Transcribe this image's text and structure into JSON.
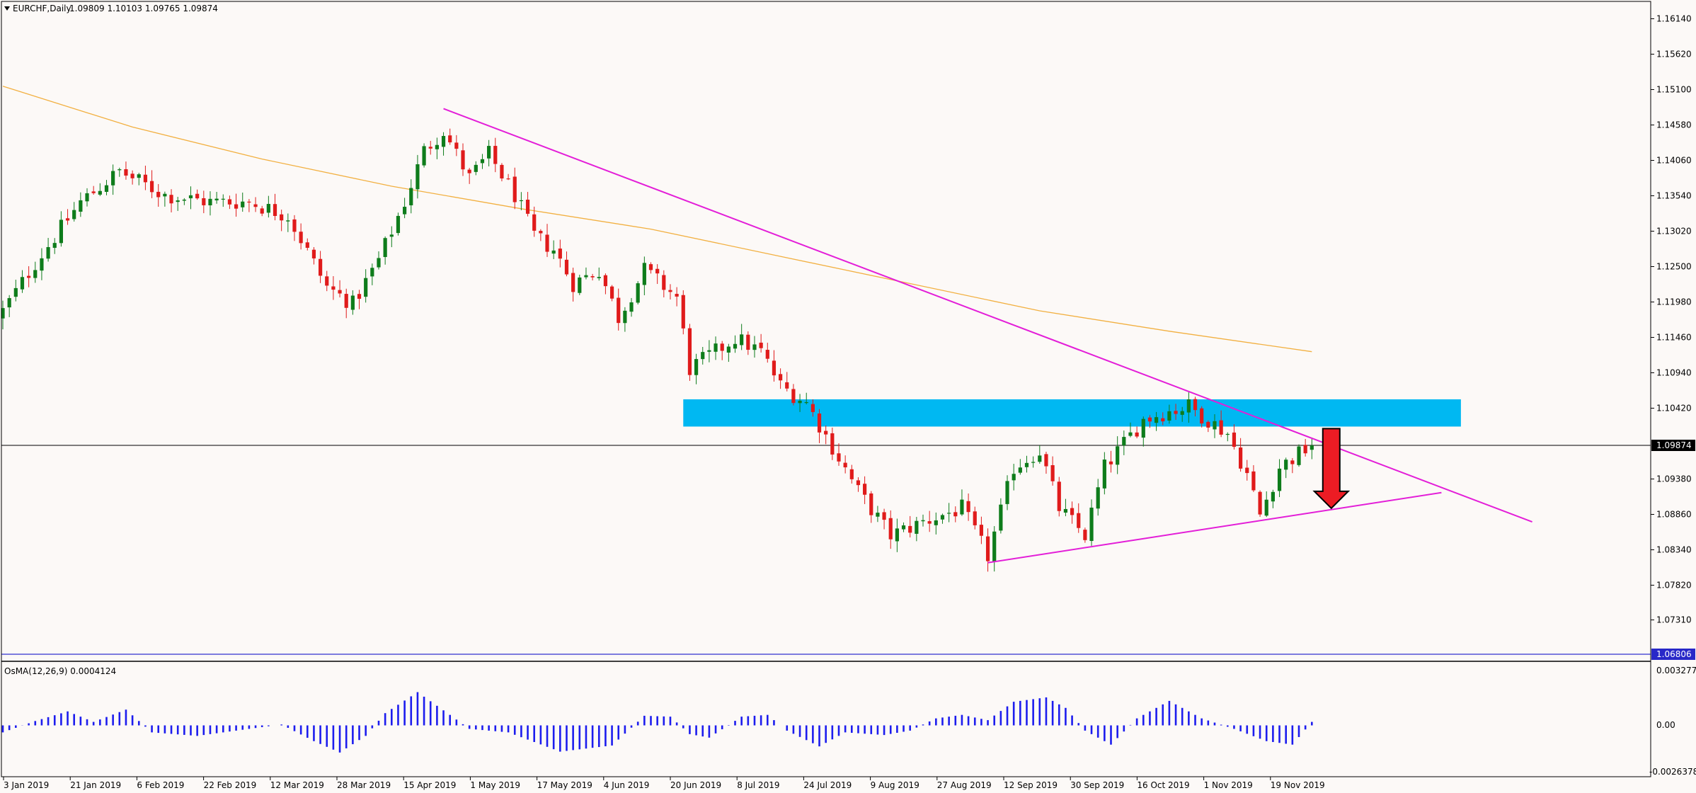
{
  "header": {
    "symbol": "EURCHF,Daily",
    "ohlc": "1.09809 1.10103 1.09765 1.09874"
  },
  "indicator": {
    "label": "OsMA(12,26,9) 0.0004124",
    "ticks": [
      "0.0032772",
      "0.00",
      "-0.0026378"
    ]
  },
  "colors": {
    "background": "#fcf9f7",
    "bull": "#0e7c1b",
    "bear": "#e01b1b",
    "trendline": "#e31ed8",
    "ma": "#f2b041",
    "zone": "#00b8f2",
    "osma": "#1c1cee",
    "arrow": "#ec1c24"
  },
  "chart_data": {
    "type": "candlestick",
    "price_ticks": [
      "1.16140",
      "1.15620",
      "1.15100",
      "1.14580",
      "1.14060",
      "1.13540",
      "1.13020",
      "1.12500",
      "1.11980",
      "1.11460",
      "1.10940",
      "1.10420",
      "1.09380",
      "1.08860",
      "1.08340",
      "1.07820",
      "1.07310"
    ],
    "ylim": [
      1.0655,
      1.1655
    ],
    "current_price": "1.09874",
    "level_line": "1.06806",
    "x_labels": [
      "3 Jan 2019",
      "21 Jan 2019",
      "6 Feb 2019",
      "22 Feb 2019",
      "12 Mar 2019",
      "28 Mar 2019",
      "15 Apr 2019",
      "1 May 2019",
      "17 May 2019",
      "4 Jun 2019",
      "20 Jun 2019",
      "8 Jul 2019",
      "24 Jul 2019",
      "9 Aug 2019",
      "27 Aug 2019",
      "12 Sep 2019",
      "30 Sep 2019",
      "16 Oct 2019",
      "1 Nov 2019",
      "19 Nov 2019"
    ],
    "close_anchors": [
      [
        0,
        1.1185
      ],
      [
        5,
        1.1255
      ],
      [
        12,
        1.1345
      ],
      [
        18,
        1.139
      ],
      [
        25,
        1.1355
      ],
      [
        32,
        1.1345
      ],
      [
        38,
        1.1345
      ],
      [
        44,
        1.1325
      ],
      [
        48,
        1.1255
      ],
      [
        50,
        1.122
      ],
      [
        54,
        1.1195
      ],
      [
        58,
        1.126
      ],
      [
        62,
        1.1345
      ],
      [
        65,
        1.142
      ],
      [
        68,
        1.145
      ],
      [
        72,
        1.138
      ],
      [
        75,
        1.1415
      ],
      [
        79,
        1.1355
      ],
      [
        82,
        1.1295
      ],
      [
        85,
        1.1275
      ],
      [
        88,
        1.1225
      ],
      [
        92,
        1.1245
      ],
      [
        95,
        1.1175
      ],
      [
        99,
        1.1245
      ],
      [
        104,
        1.1205
      ],
      [
        106,
        1.11
      ],
      [
        110,
        1.1125
      ],
      [
        113,
        1.1145
      ],
      [
        117,
        1.1125
      ],
      [
        120,
        1.1075
      ],
      [
        124,
        1.105
      ],
      [
        128,
        1.0985
      ],
      [
        132,
        1.092
      ],
      [
        137,
        1.0855
      ],
      [
        142,
        1.0875
      ],
      [
        148,
        1.0895
      ],
      [
        152,
        1.0825
      ],
      [
        156,
        1.0955
      ],
      [
        160,
        1.098
      ],
      [
        163,
        1.0895
      ],
      [
        167,
        1.0855
      ],
      [
        170,
        1.0955
      ],
      [
        173,
        1.099
      ],
      [
        176,
        1.1025
      ],
      [
        179,
        1.1035
      ],
      [
        183,
        1.1045
      ],
      [
        186,
        1.1025
      ],
      [
        189,
        1.1005
      ],
      [
        192,
        1.0945
      ],
      [
        194,
        1.0885
      ],
      [
        197,
        1.0955
      ],
      [
        200,
        1.0975
      ],
      [
        202,
        1.0987
      ]
    ],
    "moving_average": {
      "points": [
        [
          0,
          1.1515
        ],
        [
          20,
          1.1455
        ],
        [
          40,
          1.1408
        ],
        [
          60,
          1.1368
        ],
        [
          80,
          1.1335
        ],
        [
          100,
          1.1305
        ],
        [
          120,
          1.1265
        ],
        [
          140,
          1.1225
        ],
        [
          160,
          1.1185
        ],
        [
          180,
          1.1155
        ],
        [
          202,
          1.1125
        ]
      ]
    },
    "resistance_zone": {
      "from_index": 105,
      "to_index": 225,
      "low": 1.1015,
      "high": 1.1055
    },
    "trendlines": [
      {
        "name": "descending",
        "from": [
          68,
          1.1482
        ],
        "to": [
          236,
          1.0875
        ]
      },
      {
        "name": "ascending",
        "from": [
          152,
          1.0815
        ],
        "to": [
          222,
          1.0918
        ]
      }
    ],
    "arrow": {
      "index": 205,
      "from": 1.1012,
      "to": 1.0895
    },
    "osma": {
      "ylim": [
        -0.0029,
        0.0036
      ],
      "anchors": [
        [
          0,
          -0.0008
        ],
        [
          5,
          0.0005
        ],
        [
          10,
          0.0016
        ],
        [
          14,
          0.0004
        ],
        [
          19,
          0.0018
        ],
        [
          23,
          -0.0008
        ],
        [
          30,
          -0.0012
        ],
        [
          40,
          -0.0002
        ],
        [
          43,
          0.0001
        ],
        [
          48,
          -0.0018
        ],
        [
          52,
          -0.0031
        ],
        [
          56,
          -0.0012
        ],
        [
          59,
          0.0014
        ],
        [
          64,
          0.0038
        ],
        [
          69,
          0.0012
        ],
        [
          72,
          -0.0004
        ],
        [
          78,
          -0.0008
        ],
        [
          86,
          -0.003
        ],
        [
          94,
          -0.0023
        ],
        [
          99,
          0.0011
        ],
        [
          103,
          0.001
        ],
        [
          106,
          -0.001
        ],
        [
          109,
          -0.0014
        ],
        [
          114,
          0.001
        ],
        [
          118,
          0.0012
        ],
        [
          121,
          -0.0006
        ],
        [
          126,
          -0.0024
        ],
        [
          130,
          -0.0008
        ],
        [
          136,
          -0.0011
        ],
        [
          140,
          -0.0006
        ],
        [
          144,
          0.0008
        ],
        [
          148,
          0.0012
        ],
        [
          152,
          0.0006
        ],
        [
          156,
          0.0027
        ],
        [
          161,
          0.0032
        ],
        [
          164,
          0.002
        ],
        [
          167,
          -0.0006
        ],
        [
          171,
          -0.0022
        ],
        [
          175,
          0.0008
        ],
        [
          180,
          0.0028
        ],
        [
          185,
          0.0008
        ],
        [
          190,
          -0.0004
        ],
        [
          195,
          -0.0018
        ],
        [
          199,
          -0.0022
        ],
        [
          202,
          0.0004
        ]
      ]
    }
  }
}
